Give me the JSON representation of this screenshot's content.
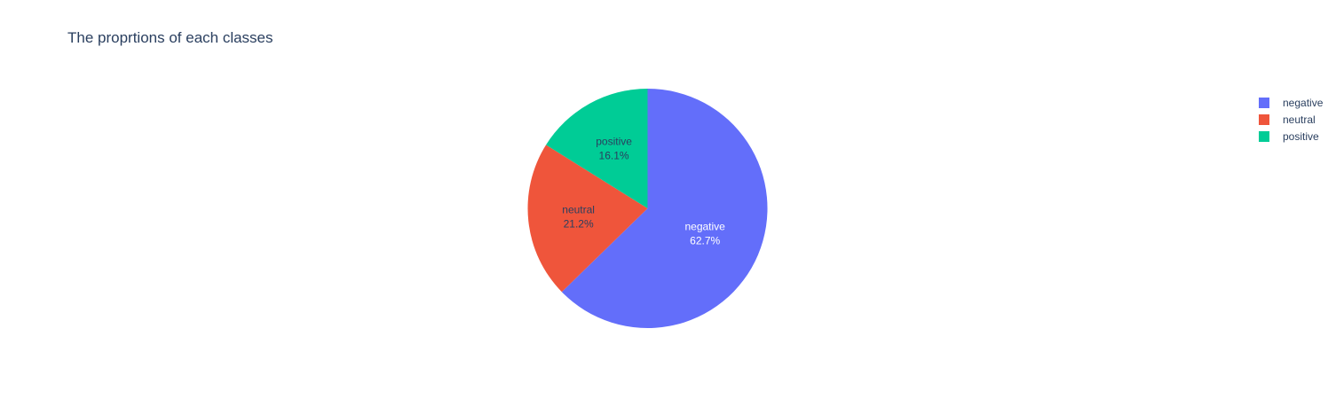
{
  "chart_data": {
    "type": "pie",
    "title": "The proprtions of each classes",
    "labels": [
      "negative",
      "neutral",
      "positive"
    ],
    "values": [
      62.7,
      21.2,
      16.1
    ],
    "value_labels": [
      "62.7%",
      "21.2%",
      "16.1%"
    ],
    "colors": [
      "#636efa",
      "#EF553B",
      "#00cc96"
    ],
    "label_colors": [
      "#ffffff",
      "#2a3f5f",
      "#2a3f5f"
    ],
    "direction": "clockwise",
    "start_angle_deg": 90,
    "legend": {
      "position": "top-right",
      "entries": [
        "negative",
        "neutral",
        "positive"
      ]
    }
  }
}
